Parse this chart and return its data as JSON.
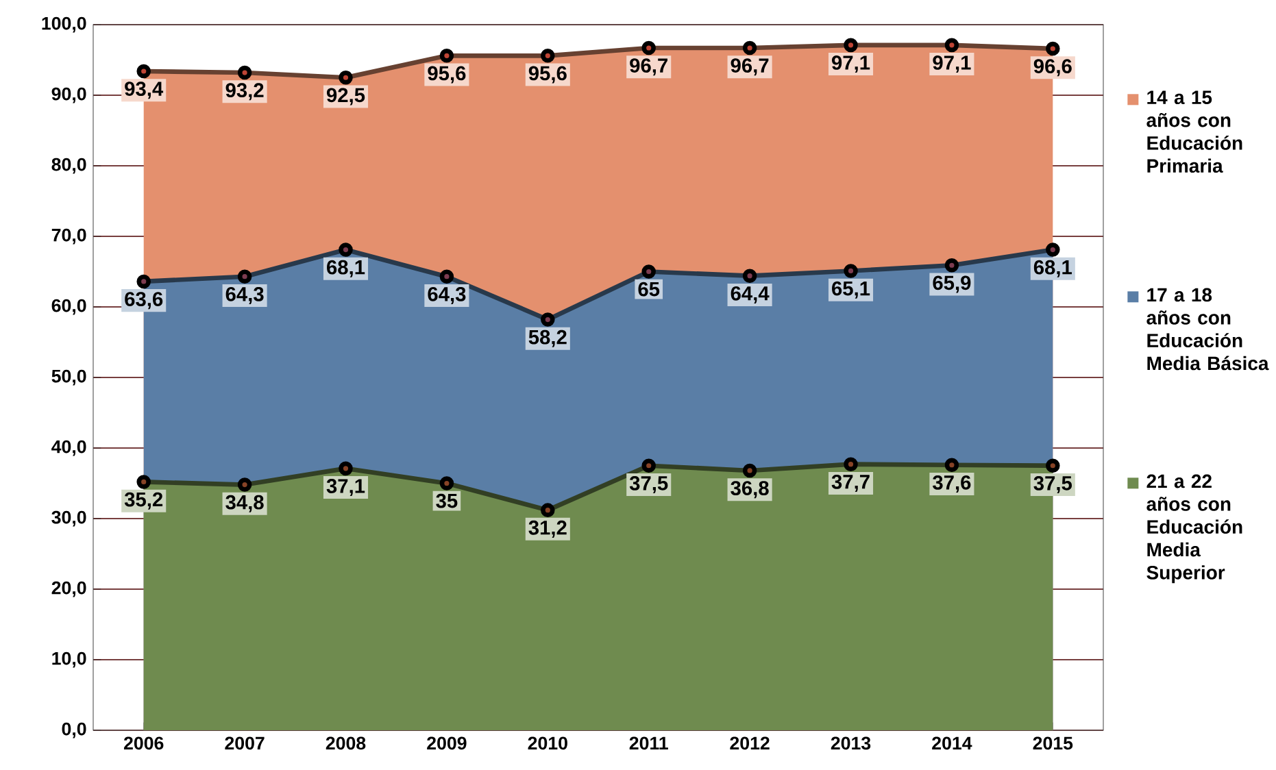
{
  "chart_data": {
    "type": "area",
    "categories": [
      "2006",
      "2007",
      "2008",
      "2009",
      "2010",
      "2011",
      "2012",
      "2013",
      "2014",
      "2015"
    ],
    "ylim": [
      0,
      100
    ],
    "yticks": [
      {
        "value": 0,
        "label": "0,0"
      },
      {
        "value": 10,
        "label": "10,0"
      },
      {
        "value": 20,
        "label": "20,0"
      },
      {
        "value": 30,
        "label": "30,0"
      },
      {
        "value": 40,
        "label": "40,0"
      },
      {
        "value": 50,
        "label": "50,0"
      },
      {
        "value": 60,
        "label": "60,0"
      },
      {
        "value": 70,
        "label": "70,0"
      },
      {
        "value": 80,
        "label": "80,0"
      },
      {
        "value": 90,
        "label": "90,0"
      },
      {
        "value": 100,
        "label": "100,0"
      }
    ],
    "grid": "y",
    "legend": "right",
    "marker": "circle",
    "line_style": "solid",
    "data_labels": true,
    "series": [
      {
        "name": "14 a 15 años con Educación Primaria",
        "color": "#e4906e",
        "values": [
          93.4,
          93.2,
          92.5,
          95.6,
          95.6,
          96.7,
          96.7,
          97.1,
          97.1,
          96.6
        ],
        "value_labels": [
          "93,4",
          "93,2",
          "92,5",
          "95,6",
          "95,6",
          "96,7",
          "96,7",
          "97,1",
          "97,1",
          "96,6"
        ]
      },
      {
        "name": "17 a 18 años con Educación Media Básica",
        "color": "#5a7ea6",
        "values": [
          63.6,
          64.3,
          68.1,
          64.3,
          58.2,
          65,
          64.4,
          65.1,
          65.9,
          68.1
        ],
        "value_labels": [
          "63,6",
          "64,3",
          "68,1",
          "64,3",
          "58,2",
          "65",
          "64,4",
          "65,1",
          "65,9",
          "68,1"
        ]
      },
      {
        "name": "21 a 22 años con Educación Media Superior",
        "color": "#6f8b4f",
        "values": [
          35.2,
          34.8,
          37.1,
          35,
          31.2,
          37.5,
          36.8,
          37.7,
          37.6,
          37.5
        ],
        "value_labels": [
          "35,2",
          "34,8",
          "37,1",
          "35",
          "31,2",
          "37,5",
          "36,8",
          "37,7",
          "37,6",
          "37,5"
        ]
      }
    ]
  }
}
